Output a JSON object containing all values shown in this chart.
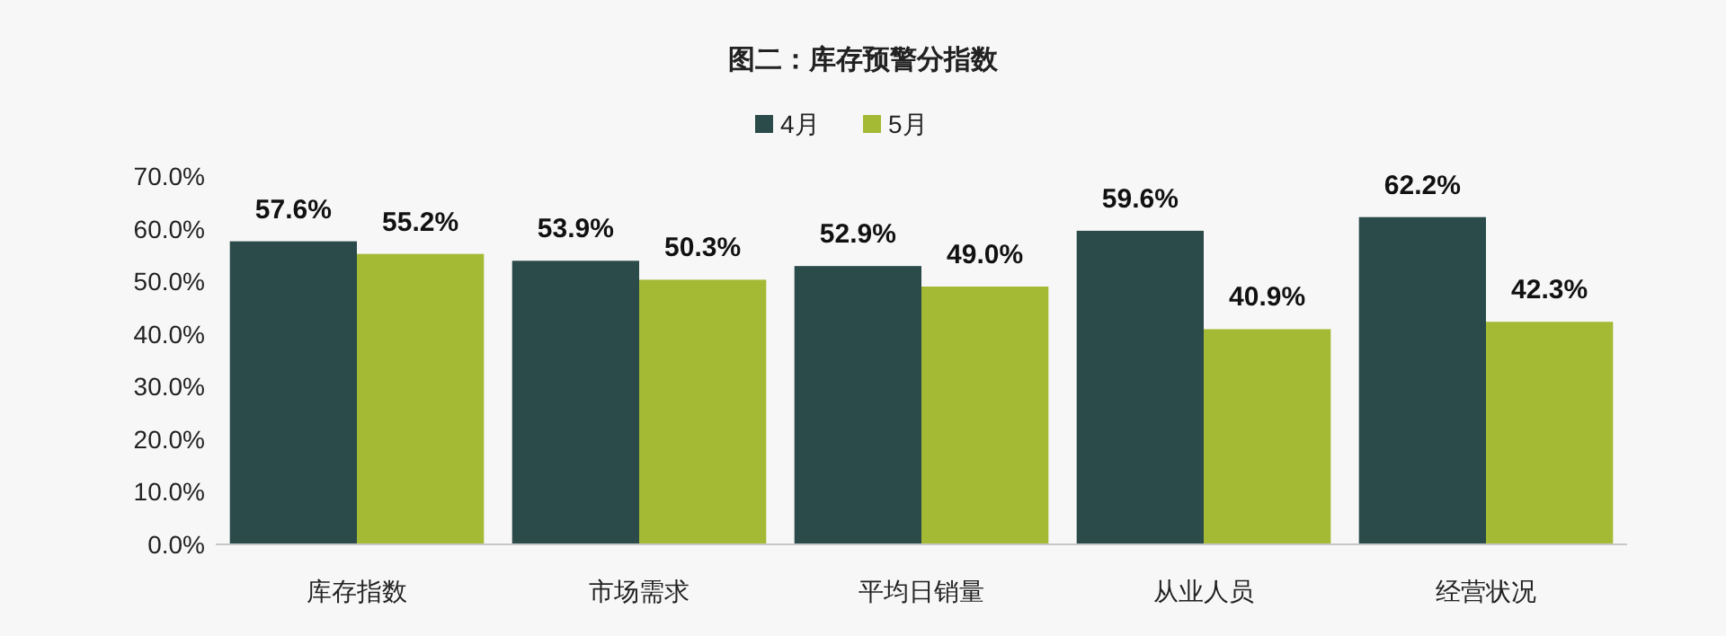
{
  "chart_data": {
    "type": "bar",
    "title": "图二：库存预警分指数",
    "categories": [
      "库存指数",
      "市场需求",
      "平均日销量",
      "从业人员",
      "经营状况"
    ],
    "series": [
      {
        "name": "4月",
        "color": "#2b4a4a",
        "values": [
          57.6,
          53.9,
          52.9,
          59.6,
          62.2
        ],
        "value_labels": [
          "57.6%",
          "53.9%",
          "52.9%",
          "59.6%",
          "62.2%"
        ]
      },
      {
        "name": "5月",
        "color": "#a4b934",
        "values": [
          55.2,
          50.3,
          49.0,
          40.9,
          42.3
        ],
        "value_labels": [
          "55.2%",
          "50.3%",
          "49.0%",
          "40.9%",
          "42.3%"
        ]
      }
    ],
    "ylim": [
      0,
      70
    ],
    "yticks": [
      {
        "value": 0,
        "label": "0.0%"
      },
      {
        "value": 10,
        "label": "10.0%"
      },
      {
        "value": 20,
        "label": "20.0%"
      },
      {
        "value": 30,
        "label": "30.0%"
      },
      {
        "value": 40,
        "label": "40.0%"
      },
      {
        "value": 50,
        "label": "50.0%"
      },
      {
        "value": 60,
        "label": "60.0%"
      },
      {
        "value": 70,
        "label": "70.0%"
      }
    ],
    "legend": "top",
    "grid": false
  }
}
